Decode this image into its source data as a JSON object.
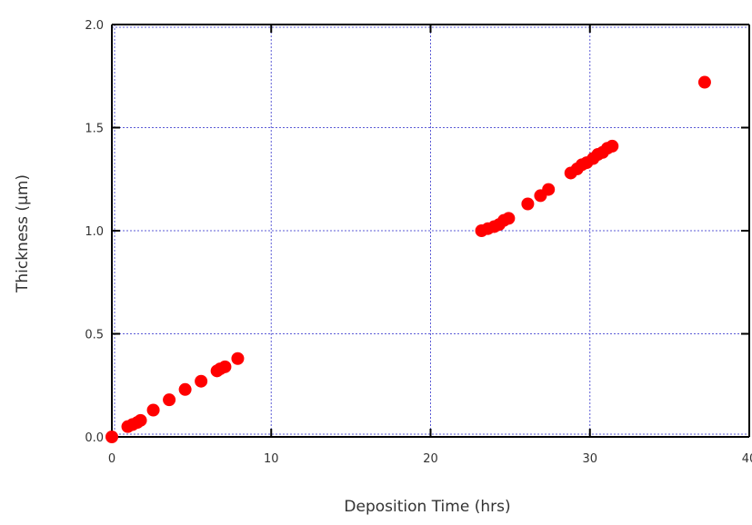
{
  "chart_data": {
    "type": "scatter",
    "title": "",
    "xlabel": "Deposition Time (hrs)",
    "ylabel": "Thickness (µm)",
    "xlim": [
      0,
      40
    ],
    "ylim": [
      0,
      2
    ],
    "x_ticks": [
      "0",
      "10",
      "20",
      "30",
      "40"
    ],
    "y_ticks": [
      "0.0",
      "0.5",
      "1.0",
      "1.5",
      "2.0"
    ],
    "grid": true,
    "legend": "none",
    "marker_color": "#ff0000",
    "grid_color": "#5b5bd6",
    "series": [
      {
        "points": [
          [
            0.0,
            0.0
          ],
          [
            1.0,
            0.05
          ],
          [
            1.3,
            0.06
          ],
          [
            1.6,
            0.07
          ],
          [
            1.8,
            0.08
          ],
          [
            2.6,
            0.13
          ],
          [
            3.6,
            0.18
          ],
          [
            4.6,
            0.23
          ],
          [
            5.6,
            0.27
          ],
          [
            6.6,
            0.32
          ],
          [
            6.8,
            0.33
          ],
          [
            7.1,
            0.34
          ],
          [
            7.9,
            0.38
          ],
          [
            23.2,
            1.0
          ],
          [
            23.6,
            1.01
          ],
          [
            24.0,
            1.02
          ],
          [
            24.3,
            1.03
          ],
          [
            24.6,
            1.05
          ],
          [
            24.9,
            1.06
          ],
          [
            26.1,
            1.13
          ],
          [
            26.9,
            1.17
          ],
          [
            27.4,
            1.2
          ],
          [
            28.8,
            1.28
          ],
          [
            29.2,
            1.3
          ],
          [
            29.5,
            1.32
          ],
          [
            29.8,
            1.33
          ],
          [
            30.2,
            1.35
          ],
          [
            30.5,
            1.37
          ],
          [
            30.8,
            1.38
          ],
          [
            31.1,
            1.4
          ],
          [
            31.4,
            1.41
          ],
          [
            37.2,
            1.72
          ]
        ]
      }
    ]
  }
}
